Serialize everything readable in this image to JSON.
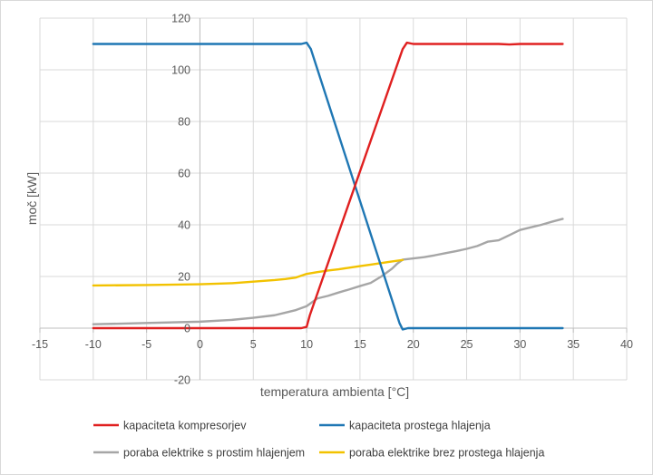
{
  "chart_data": {
    "type": "line",
    "xlabel": "temperatura ambienta [°C]",
    "ylabel": "moč [kW]",
    "xlim": [
      -15,
      40
    ],
    "ylim": [
      -20,
      120
    ],
    "x_ticks": [
      -15,
      -10,
      -5,
      0,
      5,
      10,
      15,
      20,
      25,
      30,
      35,
      40
    ],
    "y_ticks": [
      -20,
      0,
      20,
      40,
      60,
      80,
      100,
      120
    ],
    "x_tick_labels": [
      "-15",
      "-10",
      "-5",
      "0",
      "5",
      "10",
      "15",
      "20",
      "25",
      "30",
      "35",
      "40"
    ],
    "y_tick_labels": [
      "-20",
      "0",
      "20",
      "40",
      "60",
      "80",
      "100",
      "120"
    ],
    "grid": "vertical and horizontal",
    "legend_position": "bottom",
    "series": [
      {
        "name": "kapaciteta kompresorjev",
        "color": "#e02020",
        "points": [
          [
            -10,
            0
          ],
          [
            9.5,
            0
          ],
          [
            10,
            0.5
          ],
          [
            10.3,
            5
          ],
          [
            19,
            108
          ],
          [
            19.4,
            110.5
          ],
          [
            20,
            110
          ],
          [
            28,
            110
          ],
          [
            29,
            109.8
          ],
          [
            30,
            110
          ],
          [
            34,
            110
          ]
        ]
      },
      {
        "name": "kapaciteta prostega hlajenja",
        "color": "#1f77b4",
        "points": [
          [
            -10,
            110
          ],
          [
            9.5,
            110
          ],
          [
            10,
            110.5
          ],
          [
            10.4,
            108
          ],
          [
            18.7,
            2
          ],
          [
            19,
            -0.5
          ],
          [
            19.5,
            0
          ],
          [
            34,
            0
          ]
        ]
      },
      {
        "name": "poraba elektrike s prostim hlajenjem",
        "color": "#a6a6a6",
        "points": [
          [
            -10,
            1.5
          ],
          [
            -5,
            2
          ],
          [
            0,
            2.5
          ],
          [
            3,
            3.2
          ],
          [
            5,
            4
          ],
          [
            7,
            5
          ],
          [
            8,
            6
          ],
          [
            9,
            7
          ],
          [
            10,
            8.5
          ],
          [
            11,
            11.5
          ],
          [
            12,
            12.5
          ],
          [
            13,
            13.8
          ],
          [
            14,
            15
          ],
          [
            15,
            16.3
          ],
          [
            16,
            17.5
          ],
          [
            17,
            20
          ],
          [
            18,
            23
          ],
          [
            18.5,
            25
          ],
          [
            19,
            26.5
          ],
          [
            20,
            27
          ],
          [
            21,
            27.5
          ],
          [
            22,
            28.2
          ],
          [
            23,
            29
          ],
          [
            24,
            29.8
          ],
          [
            25,
            30.7
          ],
          [
            26,
            31.8
          ],
          [
            27,
            33.5
          ],
          [
            28,
            34
          ],
          [
            29,
            36
          ],
          [
            30,
            38
          ],
          [
            31,
            39
          ],
          [
            32,
            40
          ],
          [
            33,
            41.2
          ],
          [
            34,
            42.3
          ]
        ]
      },
      {
        "name": "poraba elektrike brez prostega hlajenja",
        "color": "#f2c200",
        "points": [
          [
            -10,
            16.5
          ],
          [
            -5,
            16.7
          ],
          [
            0,
            17
          ],
          [
            3,
            17.4
          ],
          [
            5,
            18
          ],
          [
            7,
            18.6
          ],
          [
            8,
            19
          ],
          [
            9,
            19.6
          ],
          [
            9.5,
            20.3
          ],
          [
            10,
            21
          ],
          [
            11,
            21.7
          ],
          [
            12,
            22.3
          ],
          [
            13,
            22.8
          ],
          [
            14,
            23.4
          ],
          [
            15,
            24
          ],
          [
            16,
            24.6
          ],
          [
            17,
            25.2
          ],
          [
            18,
            25.8
          ],
          [
            19,
            26.4
          ]
        ]
      }
    ]
  }
}
